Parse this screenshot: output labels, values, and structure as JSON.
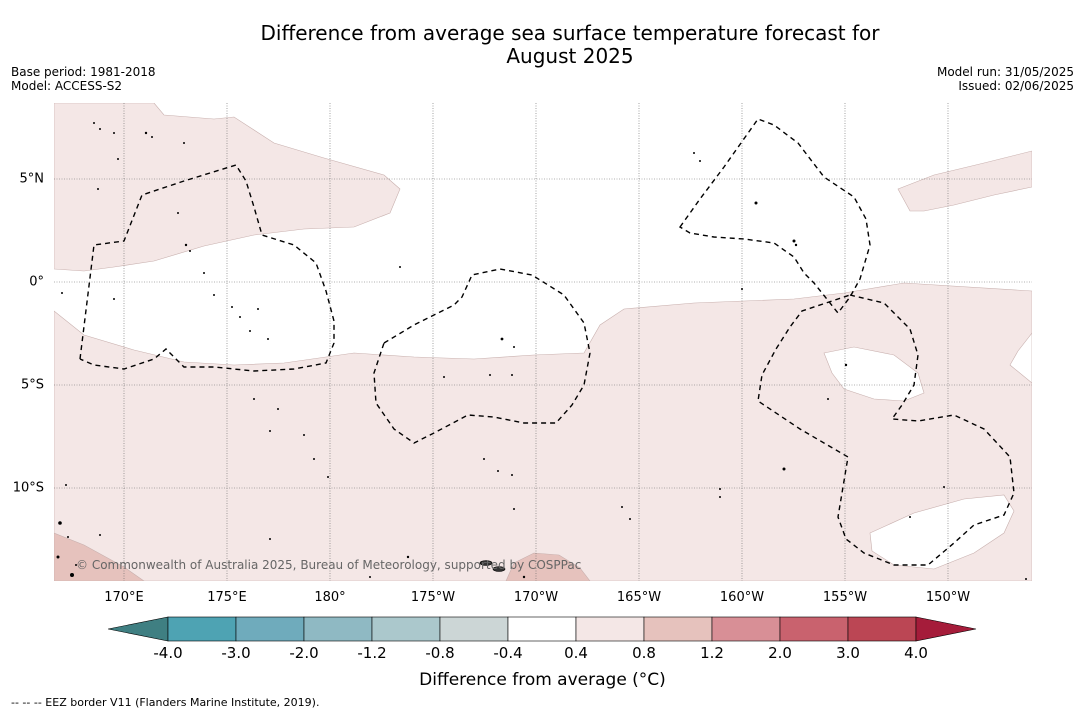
{
  "title_line1": "Difference from average sea surface temperature forecast for",
  "title_line2": "August 2025",
  "base_period": "Base period: 1981-2018",
  "model": "Model: ACCESS-S2",
  "model_run": "Model run: 31/05/2025",
  "issued": "Issued: 02/06/2025",
  "copyright": "© Commonwealth of Australia 2025, Bureau of Meteorology, supported by COSPPac",
  "lon_labels": [
    "170°E",
    "175°E",
    "180°",
    "175°W",
    "170°W",
    "165°W",
    "160°W",
    "155°W",
    "150°W"
  ],
  "lat_labels": [
    "5°N",
    "0°",
    "5°S",
    "10°S"
  ],
  "colorbar": {
    "ticks": [
      "-4.0",
      "-3.0",
      "-2.0",
      "-1.2",
      "-0.8",
      "-0.4",
      "0.4",
      "0.8",
      "1.2",
      "2.0",
      "3.0",
      "4.0"
    ],
    "colors": [
      "#3f7f82",
      "#4ea3b3",
      "#6fabbc",
      "#8fb9c3",
      "#abc8cc",
      "#ccd6d6",
      "#ffffff",
      "#f4e7e6",
      "#e6c2bd",
      "#d88f96",
      "#c9626e",
      "#bb4654",
      "#a51c3a"
    ],
    "label": "Difference from average (°C)"
  },
  "footnote": "-- -- -- EEZ border V11 (Flanders Marine Institute, 2019)."
}
